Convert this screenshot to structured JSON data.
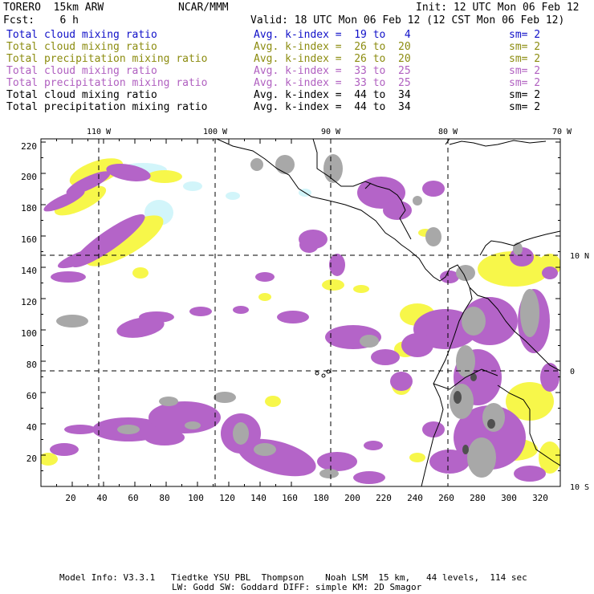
{
  "header": {
    "model_name": "TORERO  15km ARW",
    "org": "NCAR/MMM",
    "init": "Init: 12 UTC Mon 06 Feb 12",
    "fcst": "Fcst:    6 h",
    "valid": "Valid: 18 UTC Mon 06 Feb 12 (12 CST Mon 06 Feb 12)"
  },
  "legend": [
    {
      "field": "Total cloud mixing ratio",
      "kindex": "Avg. k-index =  19 to   4",
      "sm": "sm= 2",
      "color": "#1010c8"
    },
    {
      "field": "Total cloud mixing ratio",
      "kindex": "Avg. k-index =  26 to  20",
      "sm": "sm= 2",
      "color": "#8c8c10"
    },
    {
      "field": "Total precipitation mixing ratio",
      "kindex": "Avg. k-index =  26 to  20",
      "sm": "sm= 2",
      "color": "#8c8c10"
    },
    {
      "field": "Total cloud mixing ratio",
      "kindex": "Avg. k-index =  33 to  25",
      "sm": "sm= 2",
      "color": "#b060c0"
    },
    {
      "field": "Total precipitation mixing ratio",
      "kindex": "Avg. k-index =  33 to  25",
      "sm": "sm= 2",
      "color": "#b060c0"
    },
    {
      "field": "Total cloud mixing ratio",
      "kindex": "Avg. k-index =  44 to  34",
      "sm": "sm= 2",
      "color": "#000000"
    },
    {
      "field": "Total precipitation mixing ratio",
      "kindex": "Avg. k-index =  44 to  34",
      "sm": "sm= 2",
      "color": "#000000"
    }
  ],
  "map": {
    "lon_labels": [
      "110 W",
      "100 W",
      "90 W",
      "80 W",
      "70 W"
    ],
    "lat_labels": [
      "10 N",
      "0",
      "10 S"
    ],
    "y_ticks": [
      "220",
      "200",
      "180",
      "160",
      "140",
      "120",
      "100",
      "80",
      "60",
      "40",
      "20"
    ],
    "x_ticks": [
      "20",
      "40",
      "60",
      "80",
      "100",
      "120",
      "140",
      "160",
      "180",
      "200",
      "220",
      "240",
      "260",
      "280",
      "300",
      "320"
    ],
    "colors": {
      "light_blue": "#d2f5fa",
      "yellow": "#f7f74a",
      "purple": "#b464c8",
      "gray": "#a8a8a8",
      "dark_gray": "#505050",
      "coast": "#000000"
    }
  },
  "footer": {
    "line1": "Model Info: V3.3.1   Tiedtke YSU PBL  Thompson    Noah LSM  15 km,   44 levels,  114 sec",
    "line2": "LW: Godd SW: Goddard DIFF: simple KM: 2D Smagor"
  }
}
